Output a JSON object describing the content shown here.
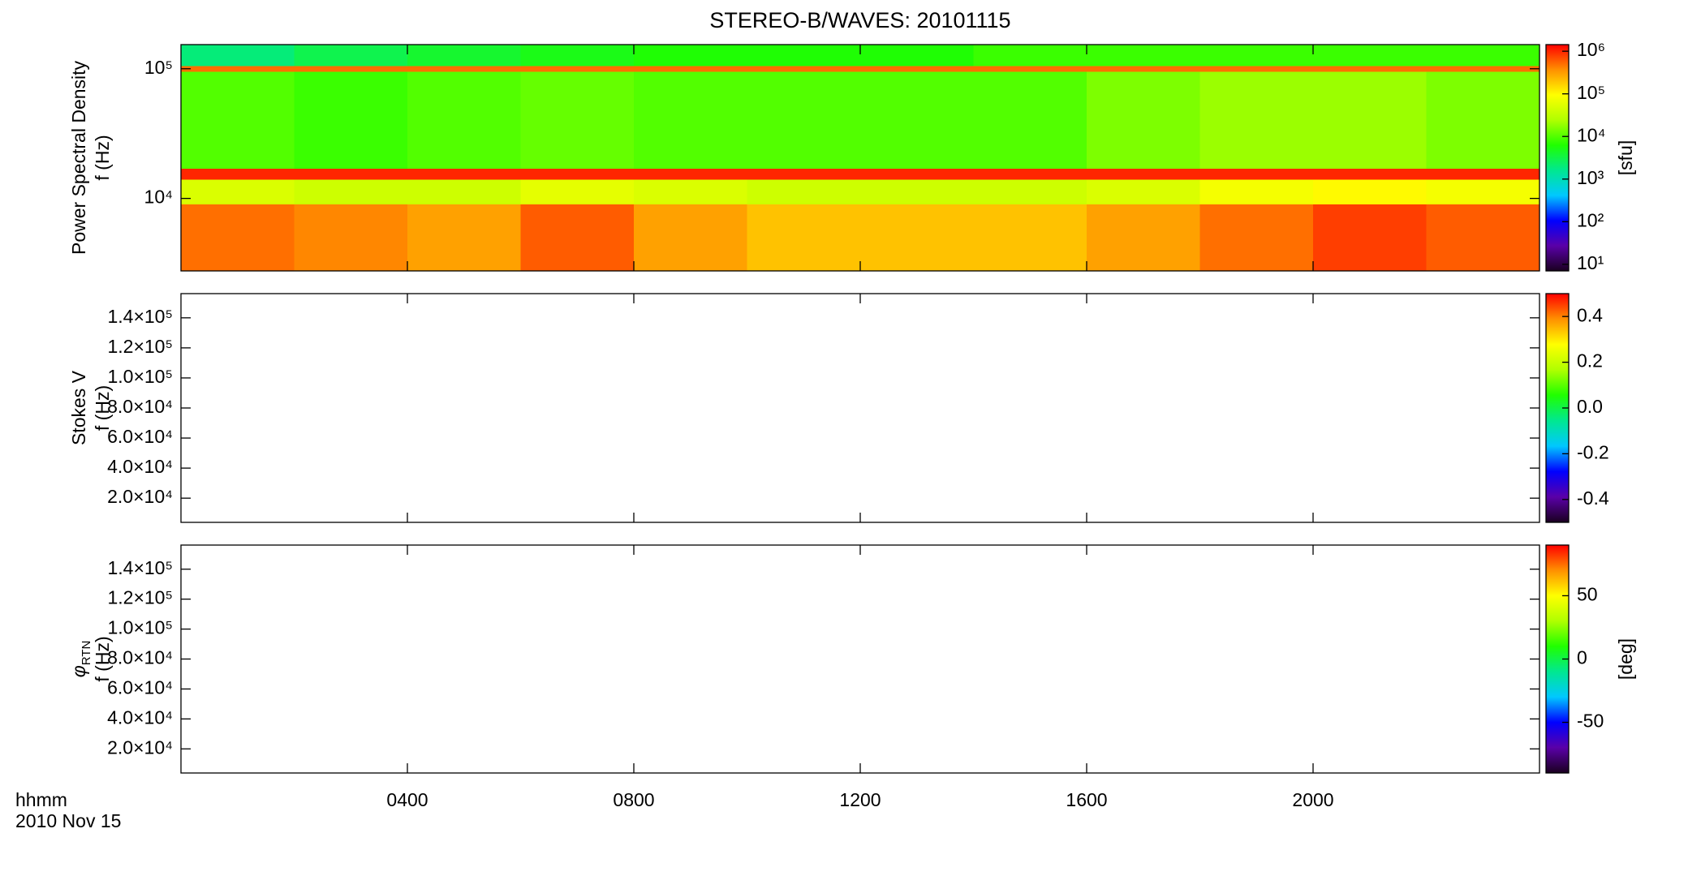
{
  "chart_data": {
    "type": "spectrogram",
    "title": "STEREO-B/WAVES: 20101115",
    "xlim": [
      0,
      24
    ],
    "xticks": [
      {
        "value": 4,
        "label": "0400"
      },
      {
        "value": 8,
        "label": "0800"
      },
      {
        "value": 12,
        "label": "1200"
      },
      {
        "value": 16,
        "label": "1600"
      },
      {
        "value": 20,
        "label": "2000"
      }
    ],
    "xlabel": [
      "hhmm",
      "2010 Nov 15"
    ],
    "colormap": [
      "#1a0020",
      "#5a00a8",
      "#0000ff",
      "#00c8ff",
      "#00e890",
      "#20ff00",
      "#b0ff00",
      "#ffff00",
      "#ff9000",
      "#ff0000"
    ],
    "panels": [
      {
        "ylabel": [
          "Power Spectral Density",
          "f (Hz)"
        ],
        "ylog": true,
        "ylim": [
          2760,
          153500
        ],
        "yticks": [
          {
            "value": 10000,
            "label": "10⁴"
          },
          {
            "value": 100000,
            "label": "10⁵"
          }
        ],
        "clog": true,
        "clim": [
          7,
          1430000
        ],
        "cticks": [
          {
            "value": 10,
            "label": "10¹"
          },
          {
            "value": 100,
            "label": "10²"
          },
          {
            "value": 1000,
            "label": "10³"
          },
          {
            "value": 10000,
            "label": "10⁴"
          },
          {
            "value": 100000,
            "label": "10⁵"
          },
          {
            "value": 1000000,
            "label": "10⁶"
          }
        ],
        "clabel": "[sfu]",
        "x_edges": [
          0,
          2,
          4,
          6,
          8,
          10,
          12,
          14,
          16,
          18,
          20,
          22,
          24
        ],
        "y_edges": [
          2760,
          9000,
          14000,
          17000,
          95000,
          105000,
          153500
        ],
        "values": [
          [
            500000,
            400000,
            300000,
            600000,
            300000,
            200000,
            200000,
            200000,
            300000,
            500000,
            800000,
            600000
          ],
          [
            50000,
            40000,
            40000,
            60000,
            50000,
            40000,
            40000,
            40000,
            50000,
            80000,
            100000,
            80000
          ],
          [
            1000000,
            1000000,
            1000000,
            1000000,
            1000000,
            1000000,
            1000000,
            1000000,
            1000000,
            1000000,
            1000000,
            1000000
          ],
          [
            10000,
            8000,
            10000,
            12000,
            10000,
            10000,
            10000,
            10000,
            15000,
            20000,
            20000,
            15000
          ],
          [
            500000,
            500000,
            500000,
            500000,
            500000,
            500000,
            500000,
            500000,
            500000,
            500000,
            500000,
            500000
          ],
          [
            2000,
            3000,
            4000,
            5000,
            6000,
            6000,
            6000,
            8000,
            8000,
            8000,
            8000,
            8000
          ]
        ]
      },
      {
        "ylabel": [
          "Stokes V",
          "f (Hz)"
        ],
        "ylog": false,
        "ylim": [
          3900,
          156100
        ],
        "yticks": [
          {
            "value": 20000,
            "label": "2.0×10⁴"
          },
          {
            "value": 40000,
            "label": "4.0×10⁴"
          },
          {
            "value": 60000,
            "label": "6.0×10⁴"
          },
          {
            "value": 80000,
            "label": "8.0×10⁴"
          },
          {
            "value": 100000,
            "label": "1.0×10⁵"
          },
          {
            "value": 120000,
            "label": "1.2×10⁵"
          },
          {
            "value": 140000,
            "label": "1.4×10⁵"
          }
        ],
        "clog": false,
        "clim": [
          -0.5,
          0.5
        ],
        "cticks": [
          -0.4,
          -0.2,
          {
            "value": 0,
            "label": "0.0"
          },
          0.2,
          0.4
        ]
      },
      {
        "ylabel": [
          {
            "text": "φ",
            "sub": "RTN"
          },
          "f (Hz)"
        ],
        "ylog": false,
        "ylim": [
          3900,
          156100
        ],
        "yticks": [
          {
            "value": 20000,
            "label": "2.0×10⁴"
          },
          {
            "value": 40000,
            "label": "4.0×10⁴"
          },
          {
            "value": 60000,
            "label": "6.0×10⁴"
          },
          {
            "value": 80000,
            "label": "8.0×10⁴"
          },
          {
            "value": 100000,
            "label": "1.0×10⁵"
          },
          {
            "value": 120000,
            "label": "1.2×10⁵"
          },
          {
            "value": 140000,
            "label": "1.4×10⁵"
          }
        ],
        "clog": false,
        "clim": [
          -90,
          90
        ],
        "cticks": [
          -50,
          0,
          50
        ],
        "clabel": "[deg]"
      }
    ]
  }
}
